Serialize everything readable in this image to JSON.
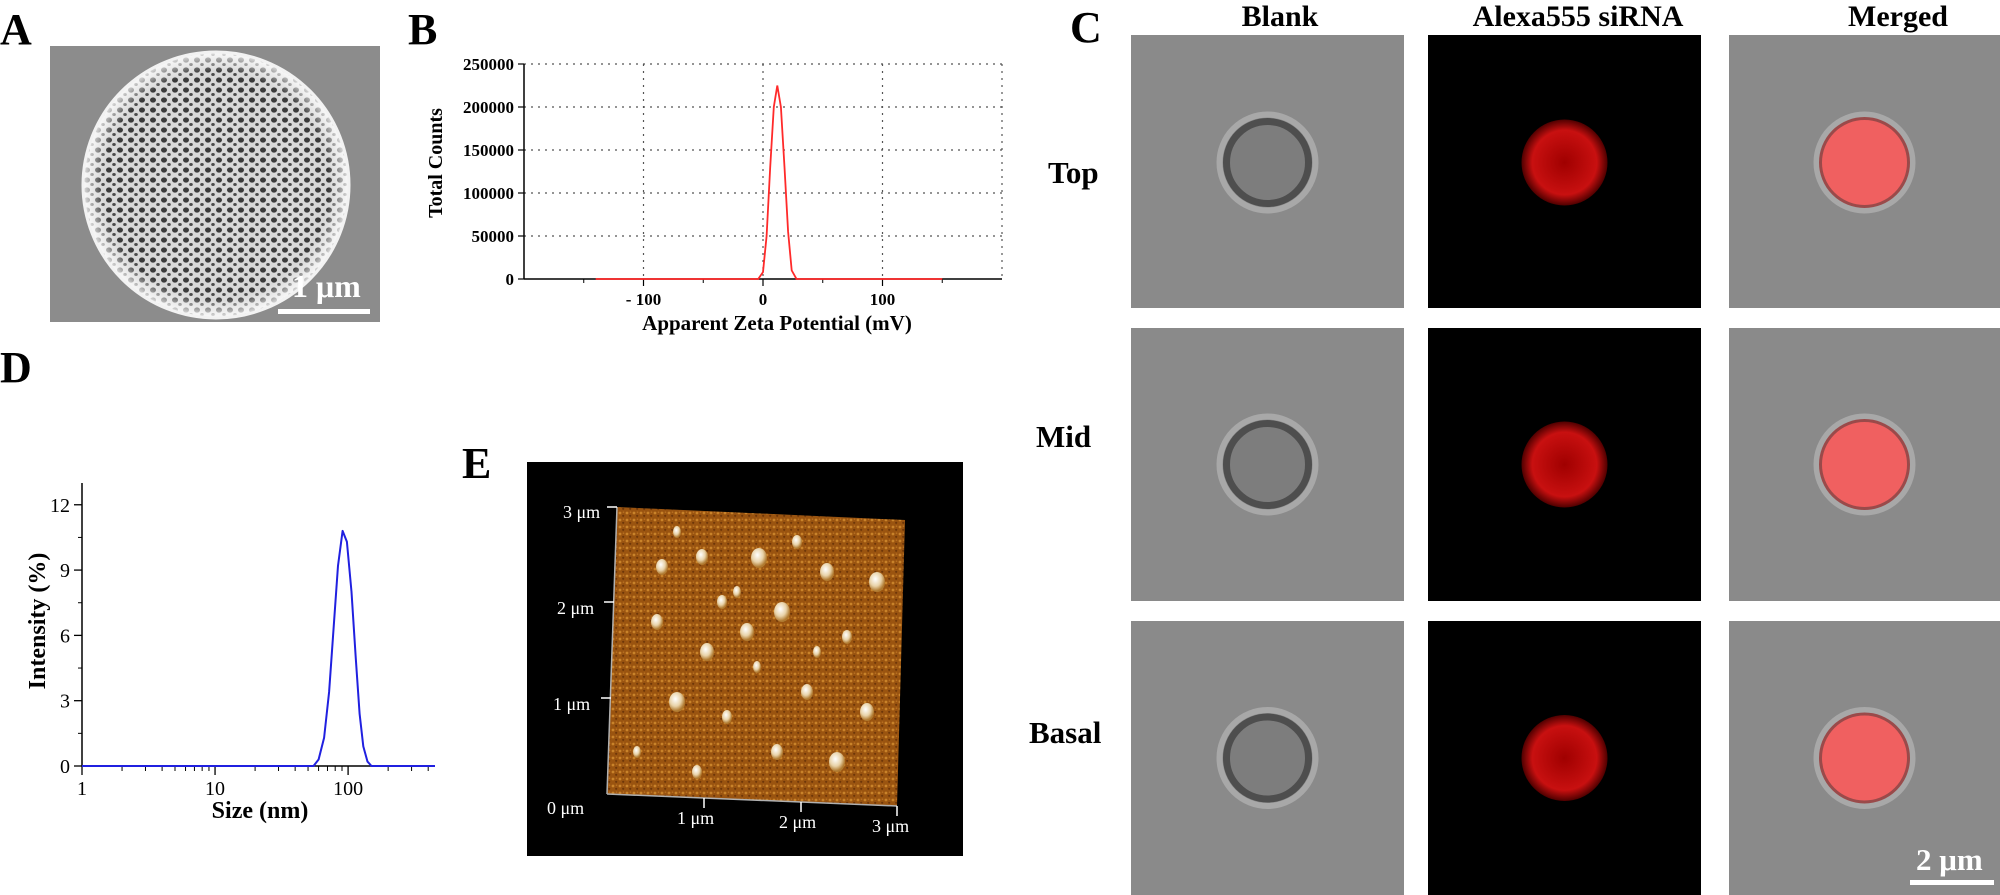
{
  "panels": {
    "a": {
      "letter": "A",
      "scale_bar": "1 μm"
    },
    "b": {
      "letter": "B"
    },
    "c": {
      "letter": "C",
      "columns": [
        "Blank",
        "Alexa555 siRNA",
        "Merged"
      ],
      "rows": [
        "Top",
        "Mid",
        "Basal"
      ],
      "scale_bar": "2 μm"
    },
    "d": {
      "letter": "D"
    },
    "e": {
      "letter": "E",
      "axis_labels_y": [
        "3 μm",
        "2 μm",
        "1 μm",
        "0 μm"
      ],
      "axis_labels_x": [
        "1 μm",
        "2 μm",
        "3 μm"
      ]
    }
  },
  "chart_data": [
    {
      "type": "line",
      "panel": "B",
      "title": "",
      "xlabel": "Apparent Zeta Potential (mV)",
      "ylabel": "Total Counts",
      "xlim": [
        -200,
        200
      ],
      "ylim": [
        0,
        250000
      ],
      "x_ticks": [
        -100,
        0,
        100
      ],
      "x_tick_labels": [
        "- 100",
        "0",
        "100"
      ],
      "y_ticks": [
        0,
        50000,
        100000,
        150000,
        200000,
        250000
      ],
      "y_tick_labels": [
        "0",
        "50000",
        "100000",
        "150000",
        "200000",
        "250000"
      ],
      "grid": true,
      "series_color": "#ff2a2a",
      "x": [
        -140,
        -4,
        0,
        3,
        6,
        9,
        12,
        15,
        18,
        21,
        24,
        28,
        150
      ],
      "y": [
        0,
        0,
        8000,
        50000,
        130000,
        200000,
        225000,
        200000,
        130000,
        55000,
        10000,
        0,
        0
      ]
    },
    {
      "type": "line",
      "panel": "D",
      "title": "",
      "xlabel": "Size (nm)",
      "ylabel": "Intensity (%)",
      "x_scale": "log",
      "xlim": [
        1,
        450
      ],
      "ylim": [
        0,
        13
      ],
      "x_ticks": [
        1,
        10,
        100
      ],
      "x_tick_labels": [
        "1",
        "10",
        "100"
      ],
      "y_ticks": [
        0,
        3,
        6,
        9,
        12
      ],
      "y_tick_labels": [
        "0",
        "3",
        "6",
        "9",
        "12"
      ],
      "grid": false,
      "series_color": "#2020e0",
      "x": [
        1,
        55,
        60,
        66,
        72,
        78,
        84,
        91,
        98,
        106,
        114,
        122,
        130,
        140,
        150,
        450
      ],
      "y": [
        0,
        0,
        0.3,
        1.3,
        3.4,
        6.4,
        9.2,
        10.8,
        10.3,
        8.0,
        5.0,
        2.4,
        0.9,
        0.2,
        0,
        0
      ]
    }
  ]
}
